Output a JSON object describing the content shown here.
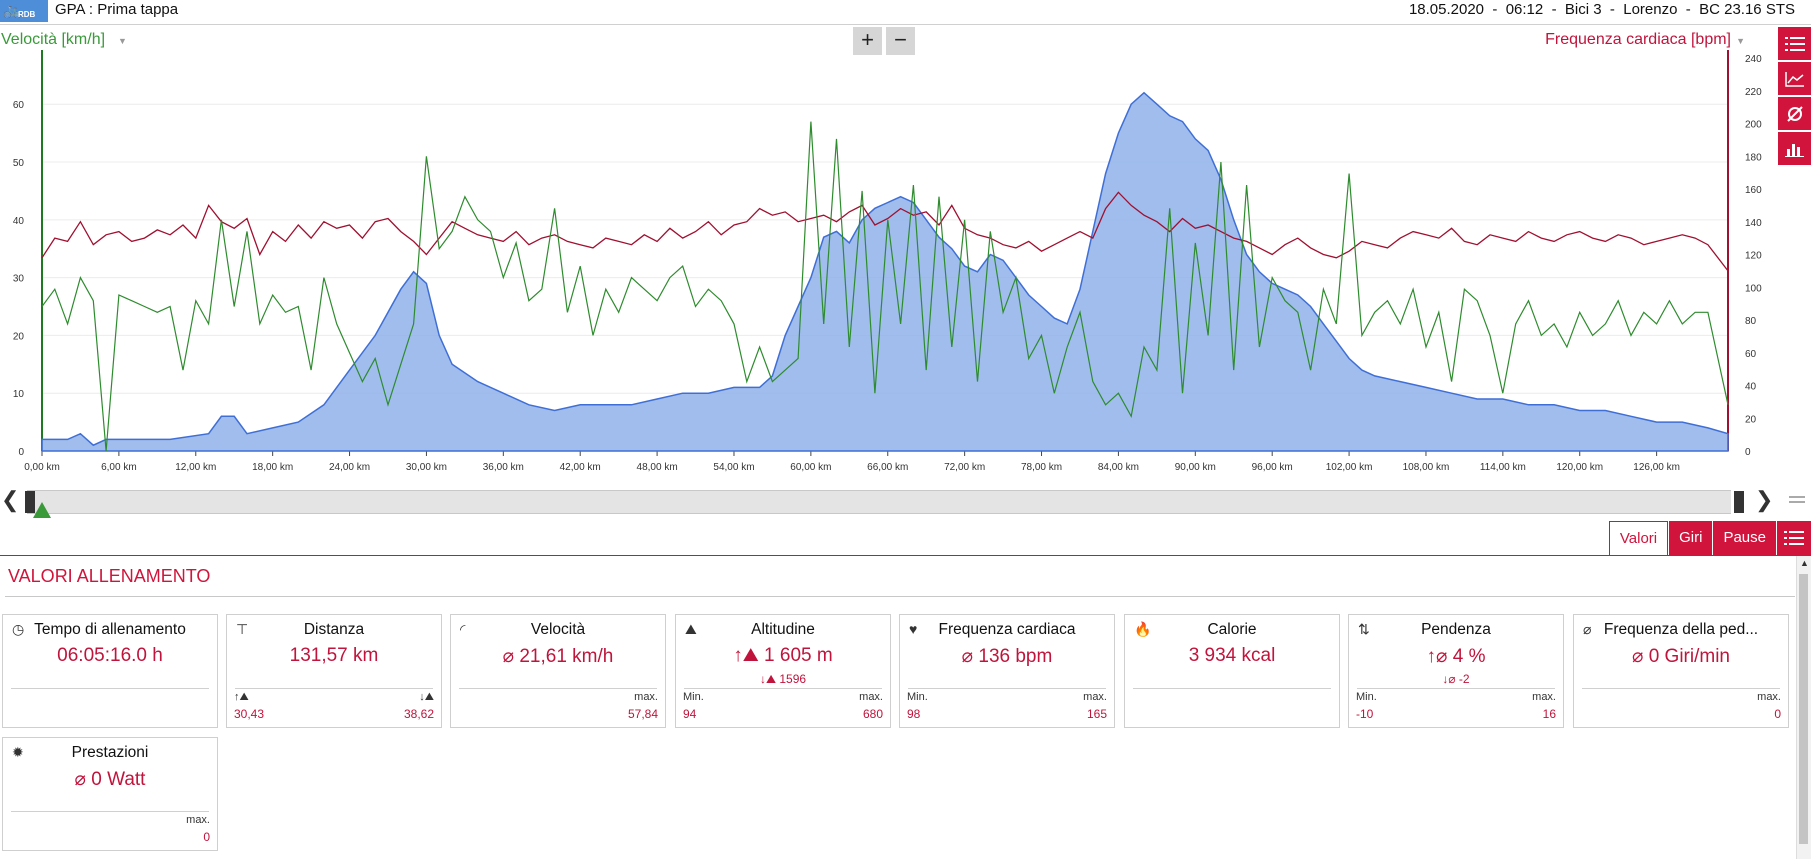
{
  "header": {
    "logo_text": "RDB",
    "title": "GPA : Prima tappa",
    "meta": "18.05.2020  -  06:12  -  Bici 3  -  Lorenzo  -  BC 23.16 STS"
  },
  "chart_controls": {
    "left_axis_label": "Velocità [km/h]",
    "right_axis_label": "Frequenza cardiaca [bpm]",
    "zoom_in": "+",
    "zoom_out": "−"
  },
  "side_buttons": [
    "list-icon",
    "line-chart-icon",
    "average-icon",
    "bar-chart-icon"
  ],
  "chart_data": {
    "type": "line",
    "x_label_unit": "km",
    "x_ticks": [
      "0,00 km",
      "6,00 km",
      "12,00 km",
      "18,00 km",
      "24,00 km",
      "30,00 km",
      "36,00 km",
      "42,00 km",
      "48,00 km",
      "54,00 km",
      "60,00 km",
      "66,00 km",
      "72,00 km",
      "78,00 km",
      "84,00 km",
      "90,00 km",
      "96,00 km",
      "102,00 km",
      "108,00 km",
      "114,00 km",
      "120,00 km",
      "126,00 km"
    ],
    "xlim": [
      0,
      131.57
    ],
    "left_axis": {
      "ylim": [
        0,
        68
      ],
      "ticks": [
        0,
        10,
        20,
        30,
        40,
        50,
        60
      ]
    },
    "right_axis": {
      "ylim": [
        0,
        240
      ],
      "ticks": [
        0,
        20,
        40,
        60,
        80,
        100,
        120,
        140,
        160,
        180,
        200,
        220,
        240
      ]
    },
    "colors": {
      "altitude_fill": "#8fb1ea",
      "altitude_line": "#3f6fd6",
      "speed": "#2e8b2e",
      "heart_rate": "#a01030"
    },
    "series": [
      {
        "key": "altitude",
        "axis": "left_scaled",
        "x": [
          0,
          2,
          3,
          4,
          5,
          10,
          13,
          14,
          15,
          16,
          18,
          20,
          22,
          24,
          26,
          28,
          29,
          30,
          31,
          32,
          34,
          36,
          38,
          40,
          42,
          44,
          46,
          48,
          50,
          52,
          54,
          56,
          57,
          58,
          60,
          61,
          62,
          63,
          64,
          65,
          66,
          67,
          68,
          69,
          70,
          71,
          72,
          73,
          74,
          75,
          76,
          77,
          78,
          79,
          80,
          81,
          82,
          83,
          84,
          85,
          86,
          87,
          88,
          89,
          90,
          91,
          92,
          93,
          94,
          95,
          96,
          97,
          98,
          99,
          100,
          101,
          102,
          103,
          104,
          106,
          108,
          110,
          112,
          114,
          116,
          118,
          120,
          122,
          124,
          126,
          128,
          130,
          131.57
        ],
        "y": [
          2,
          2,
          3,
          1,
          2,
          2,
          3,
          6,
          6,
          3,
          4,
          5,
          8,
          14,
          20,
          28,
          31,
          29,
          20,
          15,
          12,
          10,
          8,
          7,
          8,
          8,
          8,
          9,
          10,
          10,
          11,
          11,
          13,
          20,
          30,
          37,
          38,
          36,
          40,
          42,
          43,
          44,
          43,
          40,
          37,
          35,
          32,
          31,
          34,
          33,
          30,
          27,
          25,
          23,
          22,
          28,
          38,
          48,
          55,
          60,
          62,
          60,
          58,
          57,
          54,
          52,
          47,
          40,
          34,
          31,
          29,
          28,
          27,
          25,
          22,
          19,
          16,
          14,
          13,
          12,
          11,
          10,
          9,
          9,
          8,
          8,
          7,
          7,
          6,
          5,
          5,
          4,
          3
        ]
      },
      {
        "key": "speed",
        "axis": "left",
        "x": [
          0,
          1,
          2,
          3,
          4,
          5,
          6,
          7,
          8,
          9,
          10,
          11,
          12,
          13,
          14,
          15,
          16,
          17,
          18,
          19,
          20,
          21,
          22,
          23,
          24,
          25,
          26,
          27,
          28,
          29,
          30,
          31,
          32,
          33,
          34,
          35,
          36,
          37,
          38,
          39,
          40,
          41,
          42,
          43,
          44,
          45,
          46,
          47,
          48,
          49,
          50,
          51,
          52,
          53,
          54,
          55,
          56,
          57,
          58,
          59,
          60,
          61,
          62,
          63,
          64,
          65,
          66,
          67,
          68,
          69,
          70,
          71,
          72,
          73,
          74,
          75,
          76,
          77,
          78,
          79,
          80,
          81,
          82,
          83,
          84,
          85,
          86,
          87,
          88,
          89,
          90,
          91,
          92,
          93,
          94,
          95,
          96,
          97,
          98,
          99,
          100,
          101,
          102,
          103,
          104,
          105,
          106,
          107,
          108,
          109,
          110,
          111,
          112,
          113,
          114,
          115,
          116,
          117,
          118,
          119,
          120,
          121,
          122,
          123,
          124,
          125,
          126,
          127,
          128,
          129,
          130,
          131.57
        ],
        "y": [
          25,
          28,
          22,
          30,
          26,
          0,
          27,
          26,
          25,
          24,
          25,
          14,
          26,
          22,
          40,
          25,
          38,
          22,
          27,
          24,
          25,
          14,
          30,
          22,
          17,
          12,
          16,
          8,
          15,
          22,
          51,
          35,
          38,
          44,
          40,
          38,
          30,
          36,
          26,
          28,
          42,
          24,
          32,
          20,
          28,
          24,
          30,
          28,
          26,
          30,
          32,
          25,
          28,
          26,
          22,
          12,
          18,
          12,
          14,
          16,
          57,
          22,
          54,
          18,
          45,
          10,
          40,
          22,
          46,
          14,
          44,
          18,
          40,
          12,
          38,
          24,
          30,
          16,
          20,
          10,
          18,
          24,
          12,
          8,
          10,
          6,
          18,
          14,
          42,
          10,
          36,
          20,
          50,
          14,
          46,
          18,
          30,
          26,
          24,
          14,
          28,
          22,
          48,
          20,
          24,
          26,
          22,
          28,
          18,
          24,
          12,
          28,
          26,
          20,
          10,
          22,
          26,
          20,
          22,
          18,
          24,
          20,
          22,
          26,
          20,
          24,
          22,
          26,
          22,
          24,
          24,
          8
        ],
        "name": "Velocità [km/h]"
      },
      {
        "key": "heart_rate",
        "axis": "right",
        "x": [
          0,
          1,
          2,
          3,
          4,
          5,
          6,
          7,
          8,
          9,
          10,
          11,
          12,
          13,
          14,
          15,
          16,
          17,
          18,
          19,
          20,
          21,
          22,
          23,
          24,
          25,
          26,
          27,
          28,
          29,
          30,
          31,
          32,
          33,
          34,
          35,
          36,
          37,
          38,
          39,
          40,
          41,
          42,
          43,
          44,
          45,
          46,
          47,
          48,
          49,
          50,
          51,
          52,
          53,
          54,
          55,
          56,
          57,
          58,
          59,
          60,
          61,
          62,
          63,
          64,
          65,
          66,
          67,
          68,
          69,
          70,
          71,
          72,
          73,
          74,
          75,
          76,
          77,
          78,
          79,
          80,
          81,
          82,
          83,
          84,
          85,
          86,
          87,
          88,
          89,
          90,
          91,
          92,
          93,
          94,
          95,
          96,
          97,
          98,
          99,
          100,
          101,
          102,
          103,
          104,
          105,
          106,
          107,
          108,
          109,
          110,
          111,
          112,
          113,
          114,
          115,
          116,
          117,
          118,
          119,
          120,
          121,
          122,
          123,
          124,
          125,
          126,
          127,
          128,
          129,
          130,
          131.57
        ],
        "y": [
          118,
          130,
          128,
          140,
          126,
          132,
          134,
          128,
          130,
          135,
          132,
          138,
          130,
          150,
          140,
          136,
          142,
          120,
          134,
          128,
          138,
          130,
          140,
          136,
          138,
          130,
          140,
          142,
          134,
          128,
          120,
          130,
          140,
          136,
          132,
          130,
          128,
          134,
          126,
          130,
          132,
          128,
          126,
          124,
          130,
          128,
          126,
          132,
          128,
          136,
          130,
          134,
          140,
          132,
          138,
          140,
          148,
          144,
          146,
          140,
          142,
          144,
          140,
          146,
          150,
          138,
          142,
          148,
          144,
          146,
          138,
          150,
          136,
          132,
          130,
          126,
          124,
          128,
          122,
          126,
          130,
          134,
          130,
          148,
          158,
          150,
          144,
          140,
          134,
          142,
          136,
          138,
          134,
          130,
          128,
          124,
          120,
          126,
          130,
          124,
          120,
          118,
          122,
          128,
          126,
          124,
          130,
          134,
          132,
          130,
          136,
          128,
          126,
          132,
          130,
          128,
          134,
          130,
          128,
          132,
          134,
          130,
          128,
          132,
          130,
          126,
          128,
          130,
          132,
          130,
          126,
          110
        ],
        "name": "Frequenza cardiaca [bpm]"
      }
    ]
  },
  "tabs": {
    "values": "Valori",
    "laps": "Giri",
    "pauses": "Pause",
    "menu_icon": "list-icon"
  },
  "section": {
    "title": "VALORI ALLENAMENTO"
  },
  "cards": [
    {
      "title": "Tempo di allenamento",
      "icon": "clock-icon",
      "value": "06:05:16.0 h"
    },
    {
      "title": "Distanza",
      "icon": "signpost-icon",
      "value": "131,57 km",
      "bottom_left_label": "↑⛰",
      "bottom_right_label": "↓⛰",
      "bottom_left_value": "30,43",
      "bottom_right_value": "38,62"
    },
    {
      "title": "Velocità",
      "icon": "speedometer-icon",
      "value": "⌀ 21,61 km/h",
      "bottom_right_label": "max.",
      "bottom_right_value": "57,84"
    },
    {
      "title": "Altitudine",
      "icon": "mountain-icon",
      "value": "↑⛰ 1 605 m",
      "sub": "↓⛰  1596",
      "bottom_left_label": "Min.",
      "bottom_right_label": "max.",
      "bottom_left_value": "94",
      "bottom_right_value": "680"
    },
    {
      "title": "Frequenza cardiaca",
      "icon": "heart-icon",
      "value": "⌀ 136 bpm",
      "bottom_left_label": "Min.",
      "bottom_right_label": "max.",
      "bottom_left_value": "98",
      "bottom_right_value": "165"
    },
    {
      "title": "Calorie",
      "icon": "flame-icon",
      "value": "3 934 kcal"
    },
    {
      "title": "Pendenza",
      "icon": "slope-icon",
      "value": "↑⌀ 4 %",
      "sub": "↓⌀  -2",
      "bottom_left_label": "Min.",
      "bottom_right_label": "max.",
      "bottom_left_value": "-10",
      "bottom_right_value": "16"
    },
    {
      "title": "Frequenza della ped...",
      "icon": "cadence-icon",
      "value": "⌀ 0 Giri/min",
      "bottom_right_label": "max.",
      "bottom_right_value": "0"
    },
    {
      "title": "Prestazioni",
      "icon": "lightbulb-icon",
      "value": "⌀ 0 Watt",
      "bottom_right_label": "max.",
      "bottom_right_value": "0"
    }
  ]
}
